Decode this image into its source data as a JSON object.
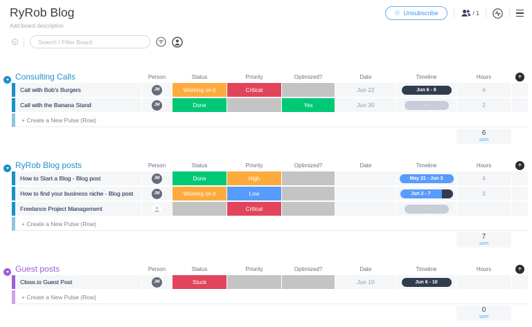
{
  "header": {
    "title": "RyRob Blog",
    "description": "Add board description",
    "unsubscribe_label": "Unsubscribe",
    "members_count": "/ 1"
  },
  "search": {
    "placeholder": "Search / Filter Board"
  },
  "columns": [
    "Person",
    "Status",
    "Priority",
    "Optimized?",
    "Date",
    "Timeline",
    "Hours"
  ],
  "palette": {
    "orange": "#fdab3d",
    "green": "#00c875",
    "red": "#e2445c",
    "blue": "#579bfc",
    "gray": "#c4c4c4"
  },
  "create_label": "+ Create a New Pulse (Row)",
  "sum_label": "sum",
  "groups": [
    {
      "name": "Consulting Calls",
      "color": "#1e8fc9",
      "color_light": "#8fc5e4",
      "sum": "6",
      "rows": [
        {
          "name": "Call with Bob's Burgers",
          "person": "JM",
          "status": {
            "label": "Working on it",
            "color": "orange"
          },
          "priority": {
            "label": "Critical",
            "color": "red"
          },
          "optimized": {
            "label": "",
            "color": "gray"
          },
          "date": "Jun 22",
          "timeline": {
            "label": "Jun 6 - 9",
            "type": "dark"
          },
          "hours": "4"
        },
        {
          "name": "Call with the Banana Stand",
          "person": "JM",
          "status": {
            "label": "Done",
            "color": "green"
          },
          "priority": {
            "label": "",
            "color": "gray"
          },
          "optimized": {
            "label": "Yes",
            "color": "green"
          },
          "date": "Jun 30",
          "timeline": {
            "label": "-",
            "type": "gray"
          },
          "hours": "2"
        }
      ]
    },
    {
      "name": "RyRob Blog posts",
      "color": "#1e8fc9",
      "color_light": "#8fc5e4",
      "sum": "7",
      "rows": [
        {
          "name": "How to Start a Blog - Blog post",
          "person": "JM",
          "status": {
            "label": "Done",
            "color": "green"
          },
          "priority": {
            "label": "High",
            "color": "orange"
          },
          "optimized": {
            "label": "",
            "color": "gray"
          },
          "date": "",
          "timeline": {
            "label": "May 21 - Jun 3",
            "type": "blue"
          },
          "hours": "4"
        },
        {
          "name": "How to find your business niche - Blog post",
          "person": "JM",
          "status": {
            "label": "Working on it",
            "color": "orange"
          },
          "priority": {
            "label": "Low",
            "color": "blue"
          },
          "optimized": {
            "label": "",
            "color": "gray"
          },
          "date": "",
          "timeline": {
            "label": "Jun 2 - 7",
            "type": "blue-dark"
          },
          "hours": "3"
        },
        {
          "name": "Freelance Project Management",
          "person": "",
          "status": {
            "label": "",
            "color": "gray"
          },
          "priority": {
            "label": "Critical",
            "color": "red"
          },
          "optimized": {
            "label": "",
            "color": "gray"
          },
          "date": "",
          "timeline": {
            "label": "-",
            "type": "gray"
          },
          "hours": ""
        }
      ]
    },
    {
      "name": "Guest posts",
      "color": "#a25ddc",
      "color_light": "#cda4ec",
      "sum": "0",
      "rows": [
        {
          "name": "Close.io Guest Post",
          "person": "JM",
          "status": {
            "label": "Stuck",
            "color": "red"
          },
          "priority": {
            "label": "",
            "color": "gray"
          },
          "optimized": {
            "label": "",
            "color": "gray"
          },
          "date": "Jun 10",
          "timeline": {
            "label": "Jun 6 - 10",
            "type": "dark"
          },
          "hours": ""
        }
      ]
    }
  ]
}
